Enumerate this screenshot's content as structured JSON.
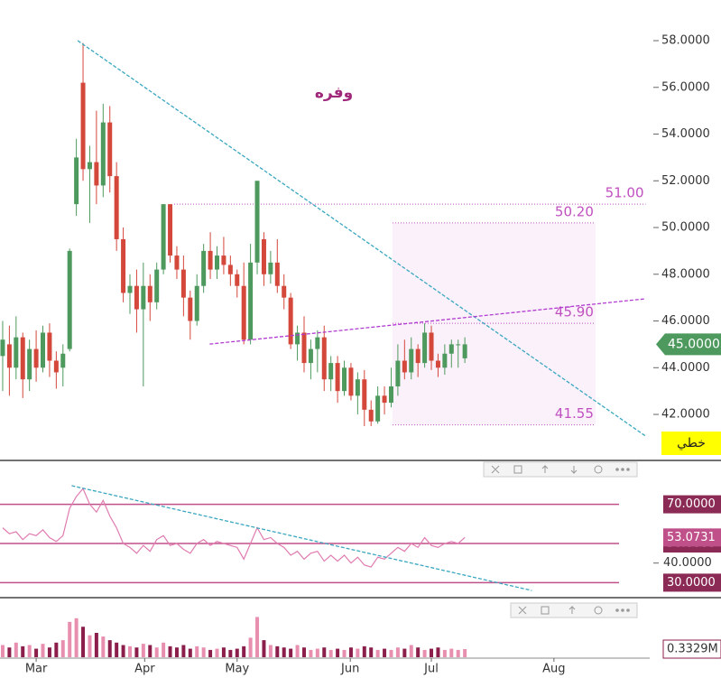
{
  "chart_data": [
    {
      "type": "candlestick",
      "title": "وفره",
      "button": "خطي",
      "x": [
        0,
        1,
        2,
        3,
        4,
        5,
        6,
        7,
        8,
        9,
        10,
        11,
        12,
        13,
        14,
        15,
        16,
        17,
        18,
        19,
        20,
        21,
        22,
        23,
        24,
        25,
        26,
        27,
        28,
        29,
        30,
        31,
        32,
        33,
        34,
        35,
        36,
        37,
        38,
        39,
        40,
        41,
        42,
        43,
        44,
        45,
        46,
        47,
        48,
        49,
        50,
        51,
        52,
        53,
        54,
        55,
        56,
        57,
        58,
        59,
        60,
        61,
        62,
        63,
        64,
        65,
        66,
        67,
        68,
        69
      ],
      "open": [
        44.5,
        45,
        44,
        45.3,
        43.5,
        44.8,
        44,
        45.5,
        44.3,
        44,
        44.8,
        51,
        56.2,
        52.5,
        52.8,
        51.8,
        54.5,
        52.2,
        49.5,
        47.2,
        47.5,
        46.5,
        47.5,
        46.8,
        48.2,
        51,
        48.8,
        48.2,
        47,
        46,
        47.5,
        49,
        48.2,
        48.8,
        48.4,
        48,
        47.5,
        45.2,
        48.5,
        49.5,
        48,
        48.5,
        47.5,
        47,
        45,
        45.5,
        44.2,
        44.8,
        45.3,
        43.5,
        44.2,
        43,
        44,
        42.8,
        43.5,
        42.2,
        41.7,
        42.8,
        42.5,
        43.2,
        44.3,
        43.8,
        44.8,
        44.2,
        45.5,
        44.3,
        44,
        44.6,
        45,
        44.4
      ],
      "high": [
        46,
        45.8,
        46.2,
        45.5,
        45.2,
        45.6,
        45.8,
        45.9,
        44.7,
        45,
        49.1,
        53.8,
        57.9,
        53.5,
        55,
        55.3,
        55.2,
        52.8,
        50,
        48,
        48.2,
        48.5,
        48,
        48.5,
        51,
        51,
        49.2,
        48.8,
        47.3,
        48,
        49.3,
        49.8,
        49.2,
        49.6,
        48.8,
        48.2,
        48.5,
        49.3,
        52,
        49.8,
        49,
        49.5,
        48,
        47.2,
        45.8,
        46.2,
        45.2,
        45.6,
        45.8,
        44.5,
        44.5,
        44.3,
        44.2,
        43.8,
        43.9,
        42.6,
        43.2,
        43.2,
        44,
        45,
        45.2,
        45.3,
        45,
        45.9,
        45.8,
        44.6,
        45,
        45.2,
        45.2,
        45.3
      ],
      "low": [
        43,
        42.8,
        43.5,
        42.7,
        43,
        43.4,
        43.8,
        43.6,
        43.1,
        43.2,
        44.7,
        50.5,
        52,
        50.2,
        51,
        51.3,
        51.5,
        49,
        46.8,
        46.3,
        45.5,
        43.2,
        46,
        46.5,
        48,
        48.5,
        47.8,
        46.2,
        45.2,
        45.8,
        47.2,
        47.8,
        47.8,
        48,
        47.5,
        47,
        45,
        45,
        48,
        47.5,
        47.6,
        47.2,
        46.5,
        44.8,
        44.3,
        43.8,
        43.5,
        43.8,
        43,
        43,
        42.5,
        42.8,
        42.6,
        42,
        41.5,
        41.5,
        41.6,
        42,
        42.3,
        42.8,
        43.5,
        43.5,
        43.6,
        44,
        43.9,
        43.6,
        43.7,
        44,
        44,
        44.2
      ],
      "close": [
        45.2,
        44,
        45.3,
        43.5,
        44.8,
        44,
        45.5,
        44.3,
        43.8,
        44.6,
        49,
        53,
        52.5,
        52.8,
        51.8,
        54.5,
        52.2,
        49.5,
        47.2,
        47.5,
        46.5,
        47.5,
        46.8,
        48.2,
        51,
        48.8,
        48.2,
        47,
        46,
        47.5,
        49,
        48.2,
        48.8,
        48.4,
        48,
        47.5,
        45.2,
        48.5,
        52,
        48,
        48.5,
        47.5,
        47,
        45,
        45.5,
        44.2,
        44.8,
        45.3,
        43.5,
        44.2,
        43,
        44,
        42.8,
        43.5,
        42.2,
        41.7,
        42.8,
        42.5,
        43.2,
        44.3,
        43.8,
        44.8,
        44.2,
        45.5,
        44.3,
        44,
        44.6,
        45,
        45,
        45
      ],
      "up_color": "#4e9a5e",
      "down_color": "#d4473b",
      "xlim": [
        -0.4,
        96.6
      ],
      "ylim": [
        40.03,
        59.74
      ],
      "xticks": [
        {
          "value": 5,
          "label": "Mar"
        },
        {
          "value": 21.2,
          "label": "Apr"
        },
        {
          "value": 35,
          "label": "May"
        },
        {
          "value": 51.9,
          "label": "Jun"
        },
        {
          "value": 64,
          "label": "Jul"
        },
        {
          "value": 82.3,
          "label": "Aug"
        }
      ],
      "yticks": [
        {
          "value": 42,
          "label": "42.0000"
        },
        {
          "value": 44,
          "label": "44.0000"
        },
        {
          "value": 46,
          "label": "46.0000"
        },
        {
          "value": 48,
          "label": "48.0000"
        },
        {
          "value": 50,
          "label": "50.0000"
        },
        {
          "value": 52,
          "label": "52.0000"
        },
        {
          "value": 54,
          "label": "54.0000"
        },
        {
          "value": 56,
          "label": "56.0000"
        },
        {
          "value": 58,
          "label": "58.0000"
        }
      ],
      "trendlines": [
        {
          "x": [
            11.2,
            96
          ],
          "y": [
            58,
            41.07
          ],
          "color": "#3aa7c0"
        },
        {
          "x": [
            30.9,
            96
          ],
          "y": [
            45.01,
            46.95
          ],
          "color": "#b03ad0"
        }
      ],
      "levels": [
        {
          "value": 51,
          "label": "51.00",
          "x": [
            25.6,
            96
          ]
        },
        {
          "value": 50.2,
          "label": "50.20",
          "x": [
            58.2,
            88.5
          ],
          "zone": true
        },
        {
          "value": 45.9,
          "label": "45.90",
          "x": [
            58.2,
            88.5
          ],
          "zone": true
        },
        {
          "value": 41.55,
          "label": "41.55",
          "x": [
            58.2,
            88.5
          ],
          "zone": true
        }
      ],
      "level_color": "#c050c0",
      "last_price": {
        "value": 45,
        "label": "45.0000"
      }
    },
    {
      "type": "line",
      "color": "#e07bb0",
      "values": [
        58,
        55,
        56,
        52,
        55,
        54,
        57,
        53,
        51,
        54,
        68,
        74,
        78,
        70,
        66,
        72,
        64,
        58,
        50,
        48,
        45,
        49,
        46,
        52,
        54,
        49,
        50,
        47,
        45,
        50,
        52,
        49,
        51,
        50,
        49,
        48,
        42,
        50,
        58,
        52,
        53,
        50,
        48,
        44,
        46,
        42,
        45,
        46,
        41,
        44,
        41,
        44,
        40,
        43,
        39,
        38,
        43,
        42,
        45,
        48,
        46,
        50,
        48,
        53,
        49,
        48,
        50,
        51,
        50,
        53.0731
      ],
      "ylim": [
        22.35,
        91.47
      ],
      "yticks": [
        {
          "value": 40,
          "label": "40.0000"
        }
      ],
      "levels": [
        {
          "value": 70,
          "label": "70.0000"
        },
        {
          "value": 50,
          "label": "50.0000"
        },
        {
          "value": 30,
          "label": "30.0000"
        }
      ],
      "level_color": "#c0508a",
      "trendline": {
        "x": [
          10.3,
          79
        ],
        "y": [
          79.5,
          26
        ],
        "color": "#3aa7c0"
      },
      "current": {
        "value": 53.0731,
        "label": "53.0731"
      }
    },
    {
      "type": "bar",
      "up_color": "#e88fb0",
      "down_color": "#8b1e4a",
      "values": [
        0.5,
        0.4,
        0.6,
        0.45,
        0.5,
        0.35,
        0.55,
        0.4,
        0.6,
        0.7,
        1.45,
        1.6,
        1.25,
        0.9,
        1.0,
        0.85,
        0.7,
        0.6,
        0.5,
        0.45,
        0.4,
        0.55,
        0.5,
        0.4,
        0.6,
        0.45,
        0.4,
        0.5,
        0.35,
        0.45,
        0.4,
        0.3,
        0.35,
        0.4,
        0.3,
        0.35,
        0.45,
        0.8,
        1.65,
        0.7,
        0.5,
        0.45,
        0.4,
        0.35,
        0.5,
        0.4,
        0.3,
        0.35,
        0.4,
        0.3,
        0.35,
        0.3,
        0.4,
        0.35,
        0.45,
        0.4,
        0.3,
        0.35,
        0.3,
        0.4,
        0.35,
        0.5,
        0.4,
        0.3,
        0.35,
        0.4,
        0.3,
        0.35,
        0.3,
        0.3329
      ],
      "ylim": [
        0,
        2.37
      ],
      "current": {
        "value": 0.3329,
        "label": "0.3329M"
      }
    }
  ]
}
